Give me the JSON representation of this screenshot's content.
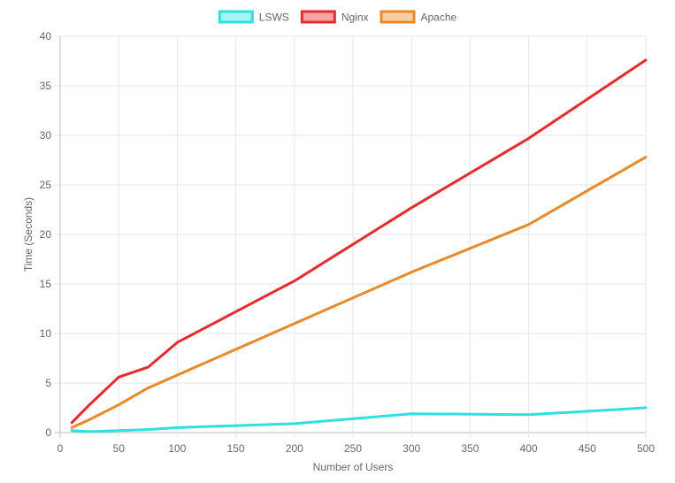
{
  "chart_data": {
    "type": "line",
    "title": "",
    "xlabel": "Number of Users",
    "ylabel": "Time (Seconds)",
    "x": [
      10,
      25,
      50,
      75,
      100,
      200,
      300,
      400,
      500
    ],
    "xlim": [
      0,
      500
    ],
    "ylim": [
      0,
      40
    ],
    "x_ticks": [
      0,
      50,
      100,
      150,
      200,
      250,
      300,
      350,
      400,
      450,
      500
    ],
    "y_ticks": [
      0,
      5,
      10,
      15,
      20,
      25,
      30,
      35,
      40
    ],
    "grid": true,
    "legend_position": "top",
    "series": [
      {
        "name": "LSWS",
        "color": "#2ee0e0",
        "fill": "#a5f3f3",
        "values": [
          0.2,
          0.1,
          0.2,
          0.3,
          0.5,
          0.9,
          1.9,
          1.8,
          2.5
        ]
      },
      {
        "name": "Nginx",
        "color": "#e52b2b",
        "fill": "#f5a3a3",
        "values": [
          1.0,
          2.8,
          5.6,
          6.6,
          9.1,
          15.3,
          22.7,
          29.7,
          37.6
        ]
      },
      {
        "name": "Apache",
        "color": "#e8892a",
        "fill": "#f8cfa3",
        "values": [
          0.5,
          1.3,
          2.8,
          4.5,
          5.8,
          11.0,
          16.2,
          21.0,
          27.8
        ]
      }
    ]
  }
}
